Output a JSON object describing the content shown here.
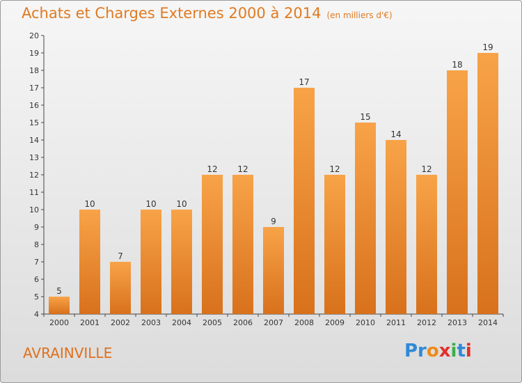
{
  "header": {
    "title": "Achats et Charges Externes 2000 à 2014",
    "unit": "(en milliers d'€)"
  },
  "footer": {
    "commune": "AVRAINVILLE",
    "logo_parts": [
      "Pr",
      "o",
      "x",
      "i",
      "t",
      "i"
    ]
  },
  "colors": {
    "bar_top": "#f8a348",
    "bar_bottom": "#d8711c",
    "title": "#e07a20",
    "axis": "#444444"
  },
  "chart_data": {
    "type": "bar",
    "title": "Achats et Charges Externes 2000 à 2014",
    "subtitle": "(en milliers d'€)",
    "xlabel": "",
    "ylabel": "",
    "categories": [
      "2000",
      "2001",
      "2002",
      "2003",
      "2004",
      "2005",
      "2006",
      "2007",
      "2008",
      "2009",
      "2010",
      "2011",
      "2012",
      "2013",
      "2014"
    ],
    "values": [
      5,
      10,
      7,
      10,
      10,
      12,
      12,
      9,
      17,
      12,
      15,
      14,
      12,
      18,
      19
    ],
    "ylim": [
      4,
      20
    ],
    "yticks": [
      4,
      5,
      6,
      7,
      8,
      9,
      10,
      11,
      12,
      13,
      14,
      15,
      16,
      17,
      18,
      19,
      20
    ],
    "grid": false,
    "data_labels": true,
    "legend": "none"
  }
}
